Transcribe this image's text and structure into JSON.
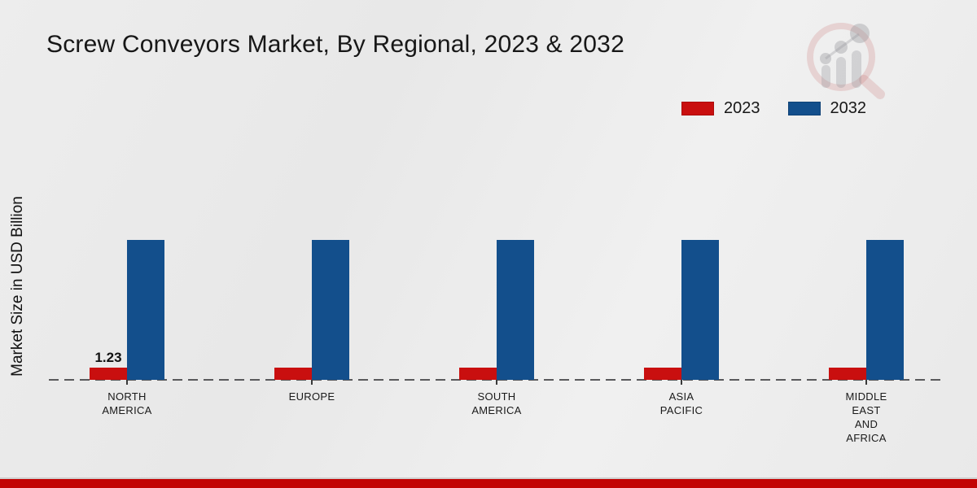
{
  "chart_data": {
    "type": "bar",
    "title": "Screw Conveyors Market, By Regional, 2023 & 2032",
    "ylabel": "Market Size in USD Billion",
    "categories": [
      "NORTH AMERICA",
      "EUROPE",
      "SOUTH AMERICA",
      "ASIA PACIFIC",
      "MIDDLE EAST AND AFRICA"
    ],
    "category_lines": [
      [
        "NORTH",
        "AMERICA"
      ],
      [
        "EUROPE"
      ],
      [
        "SOUTH",
        "AMERICA"
      ],
      [
        "ASIA",
        "PACIFIC"
      ],
      [
        "MIDDLE",
        "EAST",
        "AND",
        "AFRICA"
      ]
    ],
    "series": [
      {
        "name": "2023",
        "color": "#c90f0f",
        "values": [
          1.23,
          1.25,
          1.22,
          1.25,
          1.25
        ]
      },
      {
        "name": "2032",
        "color": "#134f8c",
        "values": [
          14.1,
          14.1,
          14.1,
          14.1,
          14.1
        ]
      }
    ],
    "data_labels": [
      {
        "series": "2023",
        "category": "NORTH AMERICA",
        "text": "1.23"
      }
    ],
    "ylim": [
      0,
      15
    ],
    "grid": false,
    "yaxis_tick_labels_visible": false,
    "baseline_style": "dashed",
    "legend_position": "top-right"
  },
  "branding": {
    "watermark_icon": "bar-chart-magnifier-logo"
  },
  "footer": {
    "band_color": "#c20404"
  }
}
